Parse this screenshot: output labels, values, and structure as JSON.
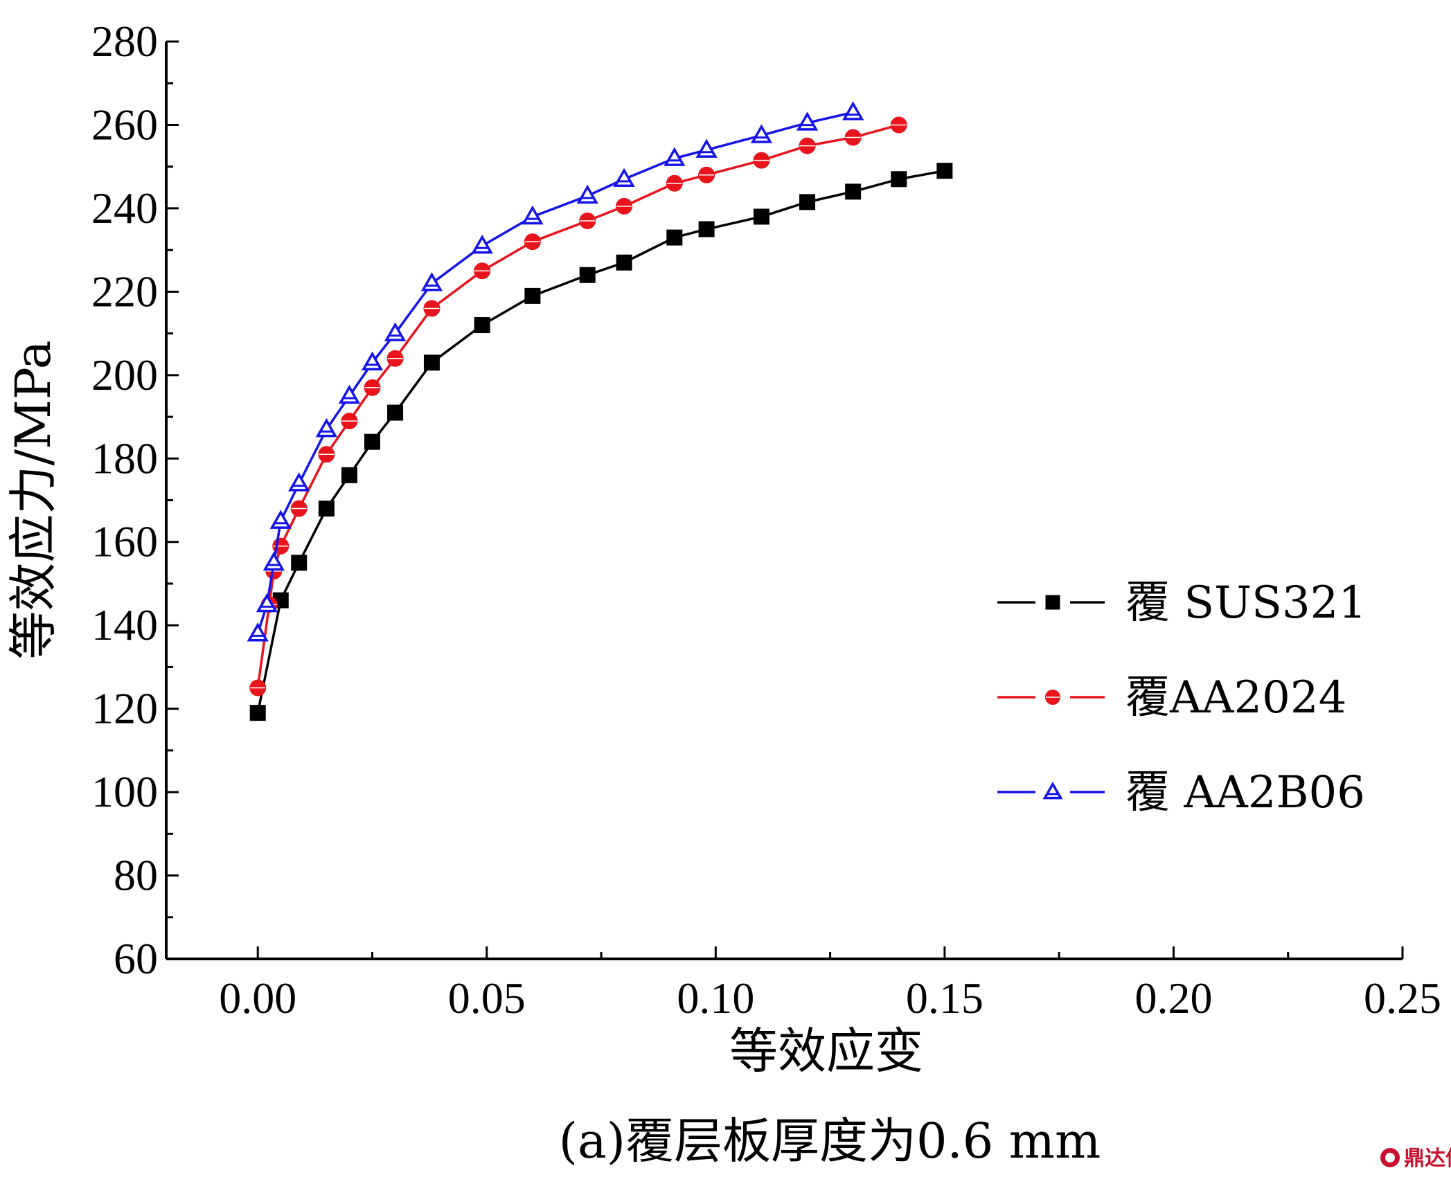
{
  "chart_data": {
    "type": "line",
    "xlabel": "等效应变",
    "ylabel": "等效应力/MPa",
    "xlim": [
      -0.02,
      0.25
    ],
    "ylim": [
      60,
      280
    ],
    "xticks": [
      "0.00",
      "0.05",
      "0.10",
      "0.15",
      "0.20",
      "0.25"
    ],
    "yticks": [
      "60",
      "80",
      "100",
      "120",
      "140",
      "160",
      "180",
      "200",
      "220",
      "240",
      "260",
      "280"
    ],
    "grid": false,
    "legend_position": "center-right",
    "caption": "(a)覆层板厚度为0.6 mm",
    "series": [
      {
        "name": "覆 SUS321",
        "color": "#000000",
        "marker": "square",
        "x": [
          0.0,
          0.005,
          0.009,
          0.015,
          0.02,
          0.025,
          0.03,
          0.038,
          0.049,
          0.06,
          0.072,
          0.08,
          0.091,
          0.098,
          0.11,
          0.12,
          0.13,
          0.14,
          0.15
        ],
        "y": [
          119,
          146,
          155,
          168,
          176,
          184,
          191,
          203,
          212,
          219,
          224,
          227,
          233,
          235,
          238,
          241.5,
          244,
          247,
          249
        ]
      },
      {
        "name": "覆AA2024",
        "color": "#e8141c",
        "marker": "circle",
        "x": [
          0.0,
          0.0025,
          0.0035,
          0.005,
          0.009,
          0.015,
          0.02,
          0.025,
          0.03,
          0.038,
          0.049,
          0.06,
          0.072,
          0.08,
          0.091,
          0.098,
          0.11,
          0.12,
          0.13,
          0.14
        ],
        "y": [
          125,
          145,
          153,
          159,
          168,
          181,
          189,
          197,
          204,
          216,
          225,
          232,
          237,
          240.5,
          246,
          248,
          251.5,
          255,
          257,
          260
        ]
      },
      {
        "name": "覆 AA2B06",
        "color": "#1414e8",
        "marker": "triangle",
        "x": [
          0.0,
          0.002,
          0.0035,
          0.005,
          0.009,
          0.015,
          0.02,
          0.025,
          0.03,
          0.038,
          0.049,
          0.06,
          0.072,
          0.08,
          0.091,
          0.098,
          0.11,
          0.12,
          0.13
        ],
        "y": [
          138,
          145,
          155,
          165,
          174,
          187,
          195,
          203,
          210,
          222,
          231,
          238,
          243,
          247,
          252,
          254,
          257.5,
          260.5,
          263
        ]
      }
    ]
  },
  "watermark": {
    "text": "鼎达信",
    "icon": "logo-icon"
  }
}
